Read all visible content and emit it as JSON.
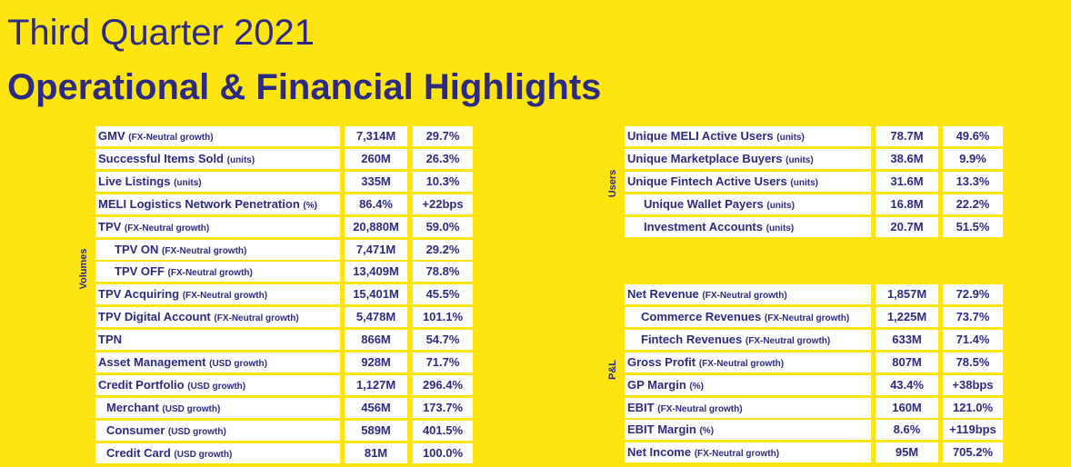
{
  "header": {
    "title_line1": "Third Quarter 2021",
    "title_line2": "Operational & Financial Highlights"
  },
  "colors": {
    "background": "#FEE511",
    "text": "#2D2A84",
    "cell": "#FFFFFF"
  },
  "sections": {
    "volumes_label": "Volumes",
    "users_label": "Users",
    "pl_label": "P&L"
  },
  "left_rows": [
    {
      "name": "GMV",
      "note": "(FX-Neutral growth)",
      "value": "7,314M",
      "growth": "29.7%",
      "indent": 0
    },
    {
      "name": "Successful Items Sold",
      "note": "(units)",
      "value": "260M",
      "growth": "26.3%",
      "indent": 0
    },
    {
      "name": "Live Listings",
      "note": "(units)",
      "value": "335M",
      "growth": "10.3%",
      "indent": 0
    },
    {
      "name": "MELI Logistics Network Penetration",
      "note": "(%)",
      "value": "86.4%",
      "growth": "+22bps",
      "indent": 0
    },
    {
      "name": "TPV",
      "note": "(FX-Neutral growth)",
      "value": "20,880M",
      "growth": "59.0%",
      "indent": 0
    },
    {
      "name": "TPV ON",
      "note": "(FX-Neutral growth)",
      "value": "7,471M",
      "growth": "29.2%",
      "indent": 2
    },
    {
      "name": "TPV OFF",
      "note": "(FX-Neutral growth)",
      "value": "13,409M",
      "growth": "78.8%",
      "indent": 2
    },
    {
      "name": "TPV Acquiring",
      "note": "(FX-Neutral growth)",
      "value": "15,401M",
      "growth": "45.5%",
      "indent": 0
    },
    {
      "name": "TPV Digital Account",
      "note": "(FX-Neutral growth)",
      "value": "5,478M",
      "growth": "101.1%",
      "indent": 0
    },
    {
      "name": "TPN",
      "note": "",
      "value": "866M",
      "growth": "54.7%",
      "indent": 0
    },
    {
      "name": "Asset Management",
      "note": "(USD growth)",
      "value": "928M",
      "growth": "71.7%",
      "indent": 0
    },
    {
      "name": "Credit Portfolio",
      "note": "(USD growth)",
      "value": "1,127M",
      "growth": "296.4%",
      "indent": 0
    },
    {
      "name": "Merchant",
      "note": "(USD growth)",
      "value": "456M",
      "growth": "173.7%",
      "indent": 1
    },
    {
      "name": "Consumer",
      "note": "(USD growth)",
      "value": "589M",
      "growth": "401.5%",
      "indent": 1
    },
    {
      "name": "Credit Card",
      "note": "(USD growth)",
      "value": "81M",
      "growth": "100.0%",
      "indent": 1
    }
  ],
  "users_rows": [
    {
      "name": "Unique MELI Active Users",
      "note": "(units)",
      "value": "78.7M",
      "growth": "49.6%",
      "indent": 0
    },
    {
      "name": "Unique Marketplace Buyers",
      "note": "(units)",
      "value": "38.6M",
      "growth": "9.9%",
      "indent": 0
    },
    {
      "name": "Unique Fintech Active Users",
      "note": "(units)",
      "value": "31.6M",
      "growth": "13.3%",
      "indent": 0
    },
    {
      "name": "Unique Wallet Payers",
      "note": "(units)",
      "value": "16.8M",
      "growth": "22.2%",
      "indent": 1
    },
    {
      "name": "Investment Accounts",
      "note": "(units)",
      "value": "20.7M",
      "growth": "51.5%",
      "indent": 1
    }
  ],
  "pl_rows": [
    {
      "name": "Net Revenue",
      "note": "(FX-Neutral growth)",
      "value": "1,857M",
      "growth": "72.9%",
      "indent": 0
    },
    {
      "name": "Commerce Revenues",
      "note": "(FX-Neutral growth)",
      "value": "1,225M",
      "growth": "73.7%",
      "indent": 1
    },
    {
      "name": "Fintech Revenues",
      "note": "(FX-Neutral growth)",
      "value": "633M",
      "growth": "71.4%",
      "indent": 1
    },
    {
      "name": "Gross Profit",
      "note": "(FX-Neutral growth)",
      "value": "807M",
      "growth": "78.5%",
      "indent": 0
    },
    {
      "name": "GP Margin",
      "note": "(%)",
      "value": "43.4%",
      "growth": "+38bps",
      "indent": 0
    },
    {
      "name": "EBIT",
      "note": "(FX-Neutral growth)",
      "value": "160M",
      "growth": "121.0%",
      "indent": 0
    },
    {
      "name": "EBIT Margin",
      "note": "(%)",
      "value": "8.6%",
      "growth": "+119bps",
      "indent": 0
    },
    {
      "name": "Net Income",
      "note": "(FX-Neutral growth)",
      "value": "95M",
      "growth": "705.2%",
      "indent": 0
    }
  ]
}
